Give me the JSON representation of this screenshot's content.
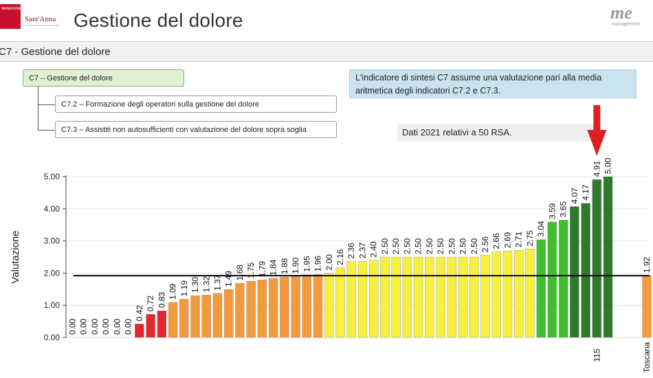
{
  "header": {
    "title": "Gestione del dolore",
    "logo_left_name": "Sant'Anna",
    "logo_left_small": "MANAGEMENT",
    "logo_right_mark": "me",
    "logo_right_sub": "management"
  },
  "section": {
    "title": "C7 - Gestione del dolore"
  },
  "tree": {
    "root": "C7 – Gestione del dolore",
    "children": [
      "C7.2 – Formazione degli operatori sulla gestione del dolore",
      "C7.3 – Assistiti non autosufficienti con valutazione del dolore sopra soglia"
    ]
  },
  "info_text": "L'indicatore di sintesi C7 assume una valutazione pari alla media aritmetica degli indicatori C7.2 e C7.3.",
  "note_text": "Dati 2021 relativi a 50 RSA.",
  "colors": {
    "red": "#e5282d",
    "orange": "#f59a3a",
    "yellow": "#f7f03c",
    "light_green": "#3dbf2e",
    "dark_green": "#2d7a2a",
    "arrow": "#e02020",
    "average_line": "#000000"
  },
  "chart_data": {
    "type": "bar",
    "ylabel": "Valutazione",
    "ylim": [
      0,
      5
    ],
    "yticks": [
      "0.00",
      "1.00",
      "2.00",
      "3.00",
      "4.00",
      "5.00"
    ],
    "reference_line": 1.92,
    "values": [
      0,
      0,
      0,
      0,
      0,
      0,
      0.42,
      0.72,
      0.83,
      1.09,
      1.19,
      1.3,
      1.32,
      1.37,
      1.49,
      1.68,
      1.75,
      1.79,
      1.84,
      1.88,
      1.9,
      1.95,
      1.96,
      2.0,
      2.16,
      2.36,
      2.37,
      2.4,
      2.5,
      2.5,
      2.5,
      2.5,
      2.5,
      2.5,
      2.5,
      2.5,
      2.5,
      2.56,
      2.66,
      2.69,
      2.71,
      2.75,
      3.04,
      3.59,
      3.65,
      4.07,
      4.17,
      4.91,
      5.0
    ],
    "labels": [
      "0.00",
      "0.00",
      "0.00",
      "0.00",
      "0.00",
      "0.00",
      "0.42",
      "0.72",
      "0.83",
      "1.09",
      "1.19",
      "1.30",
      "1.32",
      "1.37",
      "1.49",
      "1.68",
      "1.75",
      "1.79",
      "1.84",
      "1.88",
      "1.90",
      "1.95",
      "1.96",
      "2.00",
      "2.16",
      "2.36",
      "2.37",
      "2.40",
      "2.50",
      "2.50",
      "2.50",
      "2.50",
      "2.50",
      "2.50",
      "2.50",
      "2.50",
      "2.50",
      "2.56",
      "2.66",
      "2.69",
      "2.71",
      "2.75",
      "3.04",
      "3.59",
      "3.65",
      "4.07",
      "4.17",
      "4.91",
      "5.00"
    ],
    "bar_colors": [
      "red",
      "red",
      "red",
      "red",
      "red",
      "red",
      "red",
      "red",
      "red",
      "orange",
      "orange",
      "orange",
      "orange",
      "orange",
      "orange",
      "orange",
      "orange",
      "orange",
      "orange",
      "orange",
      "orange",
      "orange",
      "orange",
      "yellow",
      "yellow",
      "yellow",
      "yellow",
      "yellow",
      "yellow",
      "yellow",
      "yellow",
      "yellow",
      "yellow",
      "yellow",
      "yellow",
      "yellow",
      "yellow",
      "yellow",
      "yellow",
      "yellow",
      "yellow",
      "yellow",
      "light_green",
      "light_green",
      "light_green",
      "dark_green",
      "dark_green",
      "dark_green",
      "dark_green"
    ],
    "highlighted_bar_label": "115",
    "highlighted_bar_index": 47,
    "regional_bar": {
      "label": "Toscana",
      "value": 1.92,
      "value_label": "1.92",
      "color": "orange"
    }
  }
}
